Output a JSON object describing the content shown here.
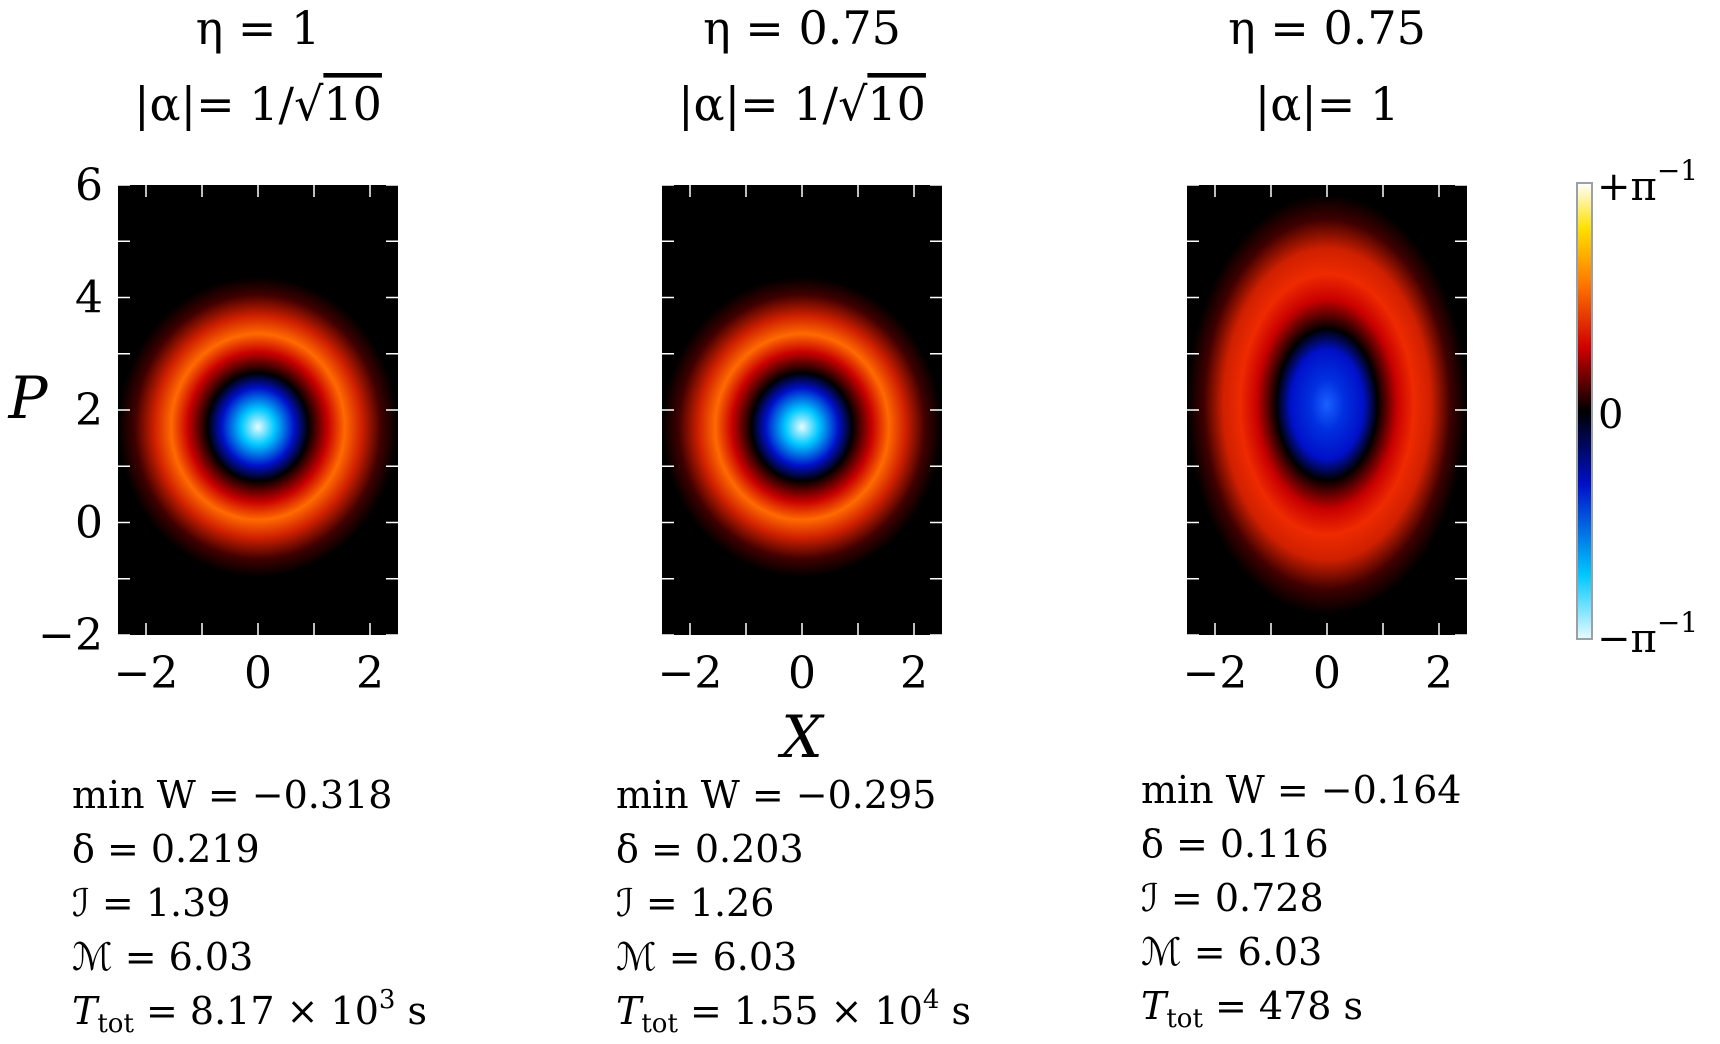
{
  "chart_data": {
    "type": "heatmap",
    "axes": {
      "xlabel": "X",
      "ylabel": "P",
      "xlim": [
        -2.5,
        2.5
      ],
      "ylim": [
        -2,
        6
      ],
      "xticks": [
        "−2",
        "0",
        "2"
      ],
      "yticks": [
        "6",
        "4",
        "2",
        "0",
        "−2"
      ]
    },
    "colorbar": {
      "top": "+π",
      "mid": "0",
      "bottom": "−π",
      "exponent": "−1",
      "range": [
        -0.3183,
        0.3183
      ],
      "stops": [
        "#e8fbff",
        "#00c8ff",
        "#0010c8",
        "#000000",
        "#d00000",
        "#ff7800",
        "#ffe000",
        "#ffffff"
      ]
    },
    "panels": [
      {
        "title_eta": "η = 1",
        "title_alpha": "|α|= 1/",
        "title_root": "10",
        "stats": [
          "min W = −0.318",
          "δ = 0.219",
          "ℐ = 1.39",
          "ℳ = 6.03"
        ],
        "ttot_label": "T",
        "ttot_sub": "tot",
        "ttot_eq": " = 8.17 × 10",
        "ttot_exp": "3",
        "ttot_unit": " s",
        "min_w": -0.318,
        "eta": 1,
        "alpha": 0.316
      },
      {
        "title_eta": "η = 0.75",
        "title_alpha": "|α|= 1/",
        "title_root": "10",
        "stats": [
          "min W = −0.295",
          "δ = 0.203",
          "ℐ = 1.26",
          "ℳ = 6.03"
        ],
        "ttot_label": "T",
        "ttot_sub": "tot",
        "ttot_eq": " = 1.55 × 10",
        "ttot_exp": "4",
        "ttot_unit": " s",
        "min_w": -0.295,
        "eta": 0.75,
        "alpha": 0.316
      },
      {
        "title_eta": "η = 0.75",
        "title_alpha": "|α|= 1",
        "title_root": "",
        "stats": [
          "min W = −0.164",
          "δ = 0.116",
          "ℐ = 0.728",
          "ℳ = 6.03"
        ],
        "ttot_label": "T",
        "ttot_sub": "tot",
        "ttot_eq": " = 478",
        "ttot_exp": "",
        "ttot_unit": " s",
        "min_w": -0.164,
        "eta": 0.75,
        "alpha": 1
      }
    ]
  }
}
